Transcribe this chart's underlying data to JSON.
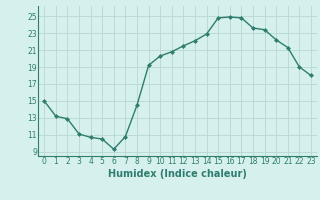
{
  "x": [
    0,
    1,
    2,
    3,
    4,
    5,
    6,
    7,
    8,
    9,
    10,
    11,
    12,
    13,
    14,
    15,
    16,
    17,
    18,
    19,
    20,
    21,
    22,
    23
  ],
  "y": [
    15,
    13.2,
    12.9,
    11.1,
    10.7,
    10.5,
    9.3,
    10.8,
    14.5,
    19.2,
    20.3,
    20.8,
    21.5,
    22.1,
    22.9,
    24.8,
    24.9,
    24.8,
    23.6,
    23.4,
    22.2,
    21.3,
    19.0,
    18.0
  ],
  "line_color": "#2e7d6e",
  "marker": "D",
  "marker_size": 2.0,
  "bg_color": "#d6f0ee",
  "grid_color": "#b8d8d4",
  "xlabel": "Humidex (Indice chaleur)",
  "xlabel_fontsize": 7,
  "ytick_values": [
    9,
    11,
    13,
    15,
    17,
    19,
    21,
    23,
    25
  ],
  "ytick_labels": [
    "9",
    "11",
    "13",
    "15",
    "17",
    "19",
    "21",
    "23",
    "25"
  ],
  "ylim": [
    8.5,
    26.2
  ],
  "xlim": [
    -0.5,
    23.5
  ],
  "xtick_labels": [
    "0",
    "1",
    "2",
    "3",
    "4",
    "5",
    "6",
    "7",
    "8",
    "9",
    "10",
    "11",
    "12",
    "13",
    "14",
    "15",
    "16",
    "17",
    "18",
    "19",
    "20",
    "21",
    "22",
    "23"
  ],
  "line_width": 1.0,
  "tick_fontsize": 5.5,
  "spine_color": "#2e7d6e"
}
